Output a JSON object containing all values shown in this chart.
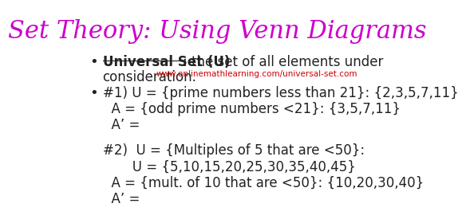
{
  "title": "Set Theory: Using Venn Diagrams",
  "title_color": "#cc00cc",
  "title_fontsize": 22,
  "background_color": "#ffffff",
  "bullet1_bold": "Universal Set (U)",
  "bullet1_rest": ": the set of all elements under",
  "bullet1_rest2": "consideration.",
  "bullet1_url": "www.onlinemathlearning.com/universal-set.com",
  "bullet1_url_color": "#cc0000",
  "bullet2_line1": "#1) U = {prime numbers less than 21}: {2,3,5,7,11}",
  "bullet2_line2": "  A = {odd prime numbers <21}: {3,5,7,11}",
  "bullet2_line3": "  A’ = ",
  "block2_line1": "#2)  U = {Multiples of 5 that are <50}:",
  "block2_line2": "       U = {5,10,15,20,25,30,35,40,45}",
  "block2_line3": "  A = {mult. of 10 that are <50}: {10,20,30,40}",
  "block2_line4": "  A’ = ",
  "body_fontsize": 12,
  "body_color": "#222222",
  "url_fontsize": 7.5,
  "url_color": "#cc0000"
}
